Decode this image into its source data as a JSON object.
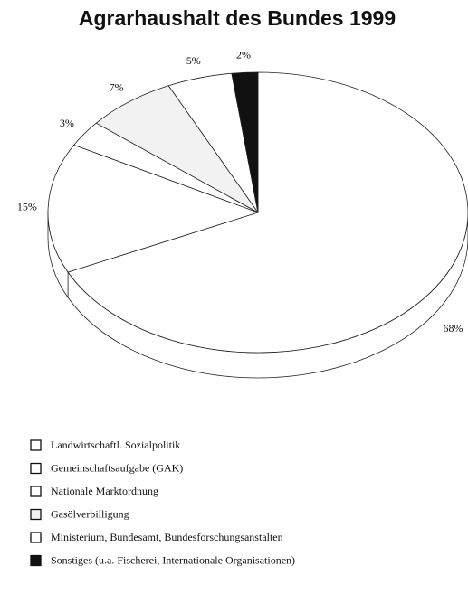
{
  "chart_data": {
    "type": "pie",
    "title": "Agrarhaushalt des Bundes 1999",
    "categories": [
      "Landwirtschaftl. Sozialpolitik",
      "Gemeinschaftsaufgabe (GAK)",
      "Nationale Marktordnung",
      "Gasölverbilligung",
      "Ministerium, Bundesamt, Bundesforschungsanstalten",
      "Sonstiges (u.a. Fischerei, Internationale Organisationen)"
    ],
    "values": [
      68,
      15,
      3,
      7,
      5,
      2
    ],
    "value_labels": [
      "68%",
      "15%",
      "3%",
      "7%",
      "5%",
      "2%"
    ],
    "colors": [
      "#ffffff",
      "#ffffff",
      "#ffffff",
      "#f2f2f2",
      "#ffffff",
      "#111111"
    ]
  }
}
